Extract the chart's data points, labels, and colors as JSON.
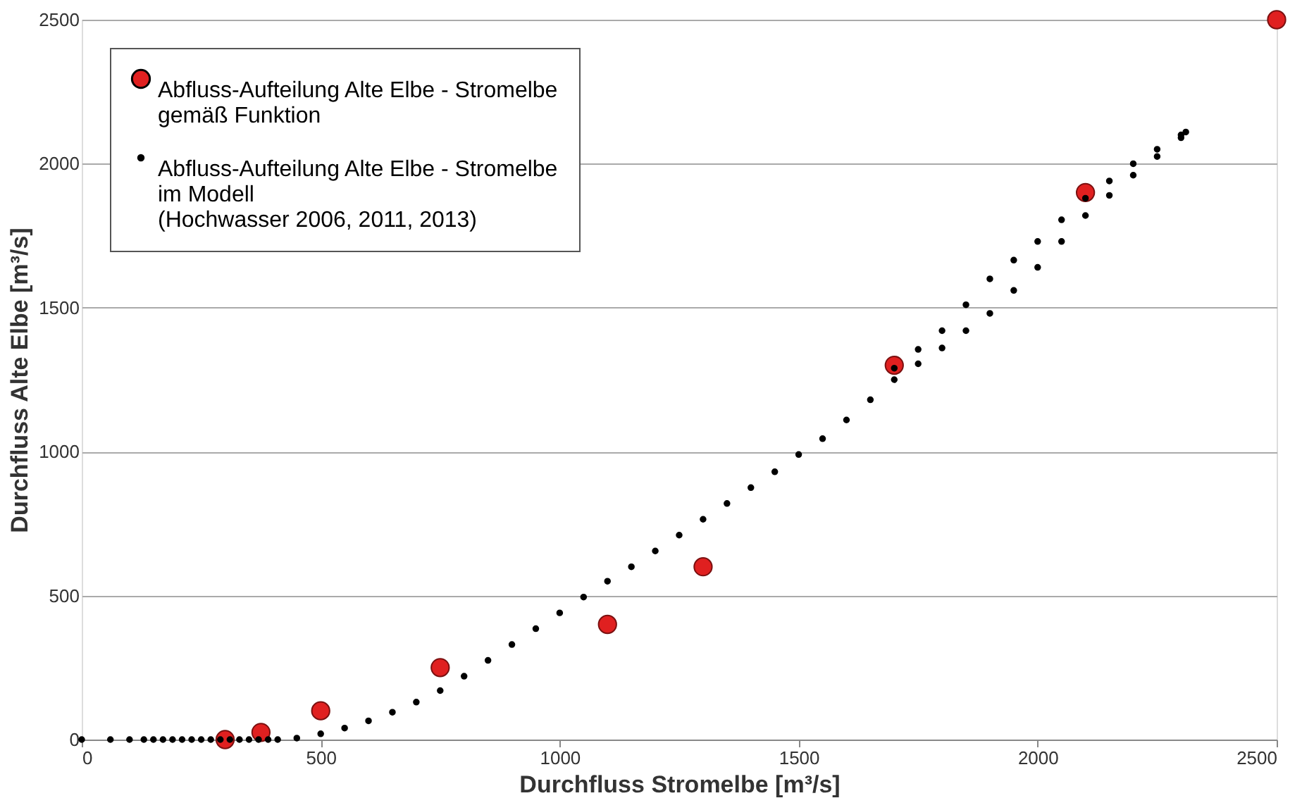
{
  "chart_data": {
    "type": "scatter",
    "xlabel": "Durchfluss Stromelbe [m³/s]",
    "ylabel": "Durchfluss Alte Elbe [m³/s]",
    "xlim": [
      0,
      2500
    ],
    "xticks": [
      0,
      500,
      1000,
      1500,
      2000,
      2500
    ],
    "ylim": [
      0,
      2500
    ],
    "yticks": [
      0,
      500,
      1000,
      1500,
      2000,
      2500
    ],
    "grid": "y",
    "legend": "top left",
    "marker": "circle",
    "series": [
      {
        "name": "Abfluss-Aufteilung Alte Elbe - Stromelbe\ngemäß Funktion",
        "color": "#e02020",
        "x": [
          300,
          375,
          500,
          750,
          1100,
          1300,
          1700,
          2100,
          2500
        ],
        "values": [
          0,
          25,
          100,
          250,
          400,
          600,
          1300,
          1900,
          2500
        ]
      },
      {
        "name": "Abfluss-Aufteilung Alte Elbe - Stromelbe\nim Modell\n(Hochwasser 2006, 2011, 2013)",
        "color": "#000000",
        "x": [
          0,
          60,
          100,
          130,
          150,
          170,
          190,
          210,
          230,
          250,
          270,
          290,
          310,
          330,
          350,
          370,
          390,
          410,
          450,
          500,
          550,
          600,
          650,
          700,
          750,
          800,
          850,
          900,
          950,
          1000,
          1050,
          1100,
          1150,
          1200,
          1250,
          1300,
          1350,
          1400,
          1450,
          1500,
          1550,
          1600,
          1650,
          1700,
          1750,
          1800,
          1850,
          1900,
          1950,
          2000,
          2050,
          2100,
          2150,
          2200,
          2250,
          2300,
          2310,
          1700,
          1750,
          1800,
          1850,
          1900,
          1950,
          2000,
          2050,
          2100,
          2150,
          2200,
          2250,
          2300
        ],
        "values": [
          0,
          0,
          0,
          0,
          0,
          0,
          0,
          0,
          0,
          0,
          0,
          0,
          0,
          0,
          0,
          0,
          0,
          0,
          5,
          20,
          40,
          65,
          95,
          130,
          170,
          220,
          275,
          330,
          385,
          440,
          495,
          550,
          600,
          655,
          710,
          765,
          820,
          875,
          930,
          990,
          1045,
          1110,
          1180,
          1290,
          1355,
          1420,
          1510,
          1600,
          1665,
          1730,
          1805,
          1880,
          1940,
          2000,
          2050,
          2100,
          2110,
          1250,
          1305,
          1360,
          1420,
          1480,
          1560,
          1640,
          1730,
          1820,
          1890,
          1960,
          2025,
          2090
        ]
      }
    ]
  }
}
